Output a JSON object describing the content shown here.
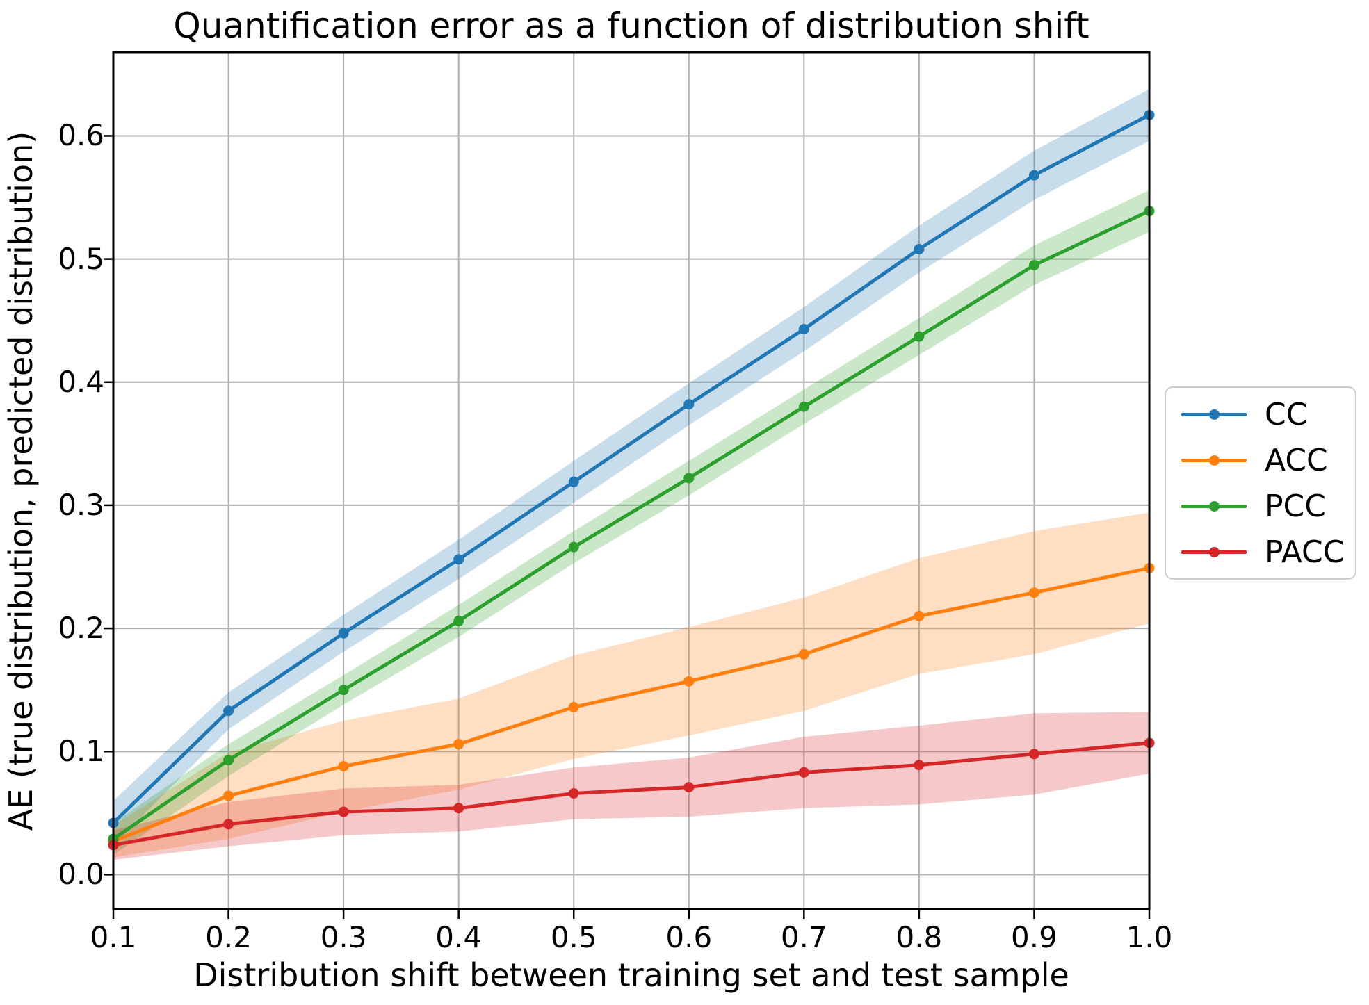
{
  "title": "Quantification error as a function of distribution shift",
  "xlabel": "Distribution shift between training set and test sample",
  "ylabel": "AE (true distribution, predicted distribution)",
  "chart_data": {
    "type": "line",
    "x": [
      0.1,
      0.2,
      0.3,
      0.4,
      0.5,
      0.6,
      0.7,
      0.8,
      0.9,
      1.0
    ],
    "series": [
      {
        "name": "CC",
        "color": "#1f77b4",
        "values": [
          0.042,
          0.133,
          0.196,
          0.256,
          0.319,
          0.382,
          0.443,
          0.508,
          0.568,
          0.617
        ],
        "band_halfwidth": [
          0.018,
          0.015,
          0.015,
          0.016,
          0.017,
          0.017,
          0.018,
          0.019,
          0.02,
          0.021
        ]
      },
      {
        "name": "ACC",
        "color": "#ff7f0e",
        "values": [
          0.027,
          0.064,
          0.088,
          0.106,
          0.136,
          0.157,
          0.179,
          0.21,
          0.229,
          0.249
        ],
        "band_halfwidth": [
          0.013,
          0.035,
          0.037,
          0.037,
          0.042,
          0.044,
          0.046,
          0.047,
          0.05,
          0.045
        ]
      },
      {
        "name": "PCC",
        "color": "#2ca02c",
        "values": [
          0.029,
          0.093,
          0.15,
          0.206,
          0.266,
          0.322,
          0.38,
          0.437,
          0.495,
          0.539
        ],
        "band_halfwidth": [
          0.013,
          0.013,
          0.012,
          0.013,
          0.013,
          0.014,
          0.014,
          0.015,
          0.016,
          0.017
        ]
      },
      {
        "name": "PACC",
        "color": "#d62728",
        "values": [
          0.024,
          0.041,
          0.051,
          0.054,
          0.066,
          0.071,
          0.083,
          0.089,
          0.098,
          0.107
        ],
        "band_halfwidth": [
          0.012,
          0.018,
          0.019,
          0.019,
          0.021,
          0.024,
          0.029,
          0.032,
          0.033,
          0.025
        ]
      }
    ],
    "xticks": [
      "0.1",
      "0.2",
      "0.3",
      "0.4",
      "0.5",
      "0.6",
      "0.7",
      "0.8",
      "0.9",
      "1.0"
    ],
    "yticks": [
      "0.0",
      "0.1",
      "0.2",
      "0.3",
      "0.4",
      "0.5",
      "0.6"
    ],
    "xlim": [
      0.1,
      1.0
    ],
    "ylim": [
      -0.028,
      0.668
    ],
    "grid": true,
    "grid_color": "#b0b0b0",
    "band_alpha": 0.25,
    "legend_position": "right-outside"
  }
}
